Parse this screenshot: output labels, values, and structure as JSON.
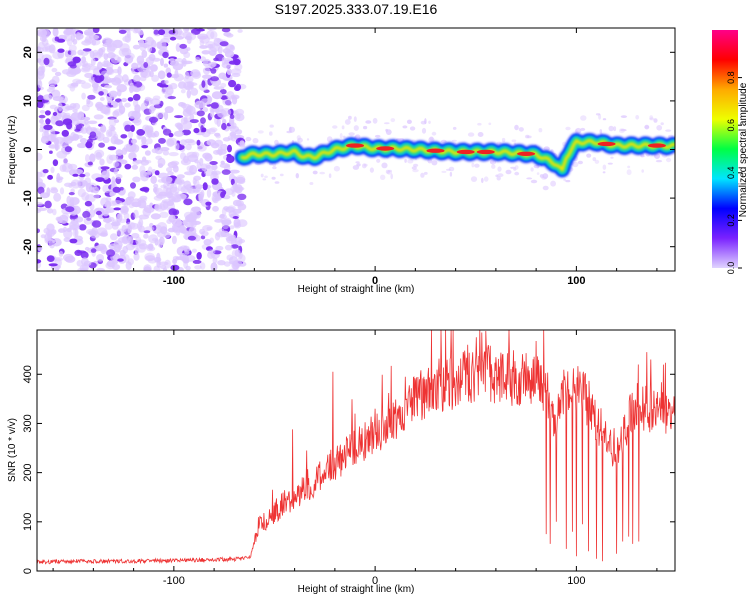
{
  "figure_title": "S197.2025.333.07.19.E16",
  "colors": {
    "ridge_outline": "#0018ff",
    "ridge_outer": "#00b8e8",
    "ridge_mid": "#22e08a",
    "ridge_inner": "#f2e400",
    "ridge_core": "#ee2222",
    "noise_light": "#dcc6ff",
    "noise_dark": "#7a2cf0",
    "snr_line": "#ee3333",
    "colorbar_stops": [
      "#e0d4ff",
      "#7a22ff",
      "#0000ff",
      "#00e5ff",
      "#00ff44",
      "#eeff00",
      "#ffaa00",
      "#ff0000",
      "#ff0088"
    ]
  },
  "chart_data": [
    {
      "type": "heatmap",
      "name": "spectrogram",
      "xlabel": "Height of straight line (km)",
      "ylabel": "Frequency (Hz)",
      "xlim": [
        -168,
        149
      ],
      "ylim": [
        -25,
        25
      ],
      "xticks": [
        -100,
        0,
        100
      ],
      "xtick_labels": [
        "-100",
        "0",
        "100"
      ],
      "yticks": [
        20,
        10,
        0,
        -10,
        -20
      ],
      "ytick_labels": [
        "20",
        "10",
        "0",
        "-10",
        "-20"
      ],
      "noise_region_x": [
        -168,
        -66
      ],
      "ridge": {
        "x": [
          -66,
          -60,
          -50,
          -40,
          -35,
          -30,
          -20,
          -10,
          0,
          10,
          20,
          40,
          60,
          80,
          85,
          90,
          93,
          95,
          100,
          110,
          120,
          130,
          140,
          149
        ],
        "freq": [
          -1.5,
          -1.0,
          -1.0,
          -0.5,
          -1.5,
          -1.5,
          0.0,
          0.8,
          0.2,
          0.2,
          0.0,
          -0.5,
          -0.5,
          -1.0,
          -2.0,
          -3.0,
          -4.5,
          -1.5,
          1.5,
          1.5,
          0.8,
          0.8,
          0.8,
          0.7
        ],
        "peak_amplitude_x": [
          -10,
          5,
          30,
          45,
          55,
          75,
          115,
          140
        ]
      },
      "colorbar": {
        "label": "Normalized spectral amplitude",
        "range": [
          0.0,
          1.0
        ],
        "ticks": [
          0.0,
          0.2,
          0.4,
          0.6,
          0.8
        ],
        "tick_labels": [
          "0.0",
          "0.2",
          "0.4",
          "0.6",
          "0.8"
        ]
      }
    },
    {
      "type": "line",
      "name": "snr",
      "xlabel": "Height of straight line (km)",
      "ylabel": "SNR (10 * v/v)",
      "xlim": [
        -168,
        149
      ],
      "ylim": [
        0,
        490
      ],
      "xticks": [
        -100,
        0,
        100
      ],
      "xtick_labels": [
        "-100",
        "0",
        "100"
      ],
      "yticks": [
        0,
        100,
        200,
        300,
        400
      ],
      "ytick_labels": [
        "0",
        "100",
        "200",
        "300",
        "400"
      ],
      "series": [
        {
          "name": "SNR",
          "x": [
            -168,
            -150,
            -120,
            -90,
            -70,
            -62,
            -58,
            -50,
            -45,
            -40,
            -30,
            -20,
            -10,
            0,
            10,
            20,
            30,
            40,
            50,
            55,
            60,
            70,
            80,
            85,
            88,
            95,
            100,
            105,
            110,
            115,
            120,
            125,
            130,
            135,
            140,
            149
          ],
          "values": [
            18,
            20,
            20,
            22,
            24,
            28,
            90,
            120,
            140,
            150,
            180,
            220,
            250,
            280,
            310,
            350,
            375,
            385,
            400,
            405,
            395,
            390,
            385,
            375,
            300,
            380,
            370,
            350,
            300,
            260,
            230,
            300,
            340,
            330,
            320,
            310
          ],
          "dropouts": [
            {
              "x": 85,
              "min": 75
            },
            {
              "x": 87,
              "min": 55
            },
            {
              "x": 90,
              "min": 100
            },
            {
              "x": 95,
              "min": 45
            },
            {
              "x": 98,
              "min": 80
            },
            {
              "x": 100,
              "min": 30
            },
            {
              "x": 103,
              "min": 95
            },
            {
              "x": 106,
              "min": 40
            },
            {
              "x": 110,
              "min": 25
            },
            {
              "x": 113,
              "min": 20
            },
            {
              "x": 120,
              "min": 35
            },
            {
              "x": 123,
              "min": 60
            },
            {
              "x": 126,
              "min": 70
            },
            {
              "x": 128,
              "min": 55
            },
            {
              "x": 131,
              "min": 60
            }
          ],
          "spikes": [
            {
              "x": -51,
              "max": 165
            },
            {
              "x": -41,
              "max": 288
            },
            {
              "x": -34,
              "max": 245
            },
            {
              "x": -21,
              "max": 405
            },
            {
              "x": -10,
              "max": 320
            },
            {
              "x": 0,
              "max": 330
            },
            {
              "x": 15,
              "max": 395
            },
            {
              "x": 53,
              "max": 485
            },
            {
              "x": 55,
              "max": 488
            },
            {
              "x": 46,
              "max": 460
            },
            {
              "x": 135,
              "max": 445
            },
            {
              "x": 137,
              "max": 430
            }
          ]
        }
      ]
    }
  ]
}
